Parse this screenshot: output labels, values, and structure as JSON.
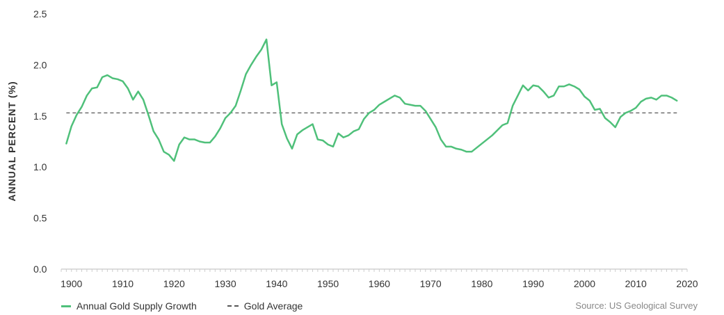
{
  "chart_data": {
    "type": "line",
    "ylabel": "ANNUAL PERCENT (%)",
    "xlabel": "",
    "ylim": [
      0,
      2.5
    ],
    "xlim": [
      1898,
      2020
    ],
    "yticks": [
      "0.0",
      "0.5",
      "1.0",
      "1.5",
      "2.0",
      "2.5"
    ],
    "xticks": [
      "1900",
      "1910",
      "1920",
      "1930",
      "1940",
      "1950",
      "1960",
      "1970",
      "1980",
      "1990",
      "2000",
      "2010",
      "2020"
    ],
    "grid": false,
    "legend_position": "bottom-left",
    "series": [
      {
        "name": "Annual Gold Supply Growth",
        "color": "#4fc07a",
        "style": "solid",
        "x": [
          1899,
          1900,
          1901,
          1902,
          1903,
          1904,
          1905,
          1906,
          1907,
          1908,
          1909,
          1910,
          1911,
          1912,
          1913,
          1914,
          1915,
          1916,
          1917,
          1918,
          1919,
          1920,
          1921,
          1922,
          1923,
          1924,
          1925,
          1926,
          1927,
          1928,
          1929,
          1930,
          1931,
          1932,
          1933,
          1934,
          1935,
          1936,
          1937,
          1938,
          1939,
          1940,
          1941,
          1942,
          1943,
          1944,
          1945,
          1946,
          1947,
          1948,
          1949,
          1950,
          1951,
          1952,
          1953,
          1954,
          1955,
          1956,
          1957,
          1958,
          1959,
          1960,
          1961,
          1962,
          1963,
          1964,
          1965,
          1966,
          1967,
          1968,
          1969,
          1970,
          1971,
          1972,
          1973,
          1974,
          1975,
          1976,
          1977,
          1978,
          1979,
          1980,
          1981,
          1982,
          1983,
          1984,
          1985,
          1986,
          1987,
          1988,
          1989,
          1990,
          1991,
          1992,
          1993,
          1994,
          1995,
          1996,
          1997,
          1998,
          1999,
          2000,
          2001,
          2002,
          2003,
          2004,
          2005,
          2006,
          2007,
          2008,
          2009,
          2010,
          2011,
          2012,
          2013,
          2014,
          2015,
          2016,
          2017,
          2018
        ],
        "y": [
          1.23,
          1.4,
          1.51,
          1.59,
          1.7,
          1.77,
          1.78,
          1.88,
          1.9,
          1.87,
          1.86,
          1.84,
          1.77,
          1.66,
          1.74,
          1.66,
          1.51,
          1.35,
          1.27,
          1.15,
          1.12,
          1.06,
          1.22,
          1.29,
          1.27,
          1.27,
          1.25,
          1.24,
          1.24,
          1.3,
          1.38,
          1.48,
          1.53,
          1.6,
          1.75,
          1.91,
          2.0,
          2.08,
          2.15,
          2.25,
          1.8,
          1.83,
          1.42,
          1.28,
          1.18,
          1.32,
          1.36,
          1.39,
          1.42,
          1.27,
          1.26,
          1.22,
          1.2,
          1.33,
          1.29,
          1.31,
          1.35,
          1.37,
          1.47,
          1.53,
          1.56,
          1.61,
          1.64,
          1.67,
          1.7,
          1.68,
          1.62,
          1.61,
          1.6,
          1.6,
          1.55,
          1.47,
          1.39,
          1.27,
          1.2,
          1.2,
          1.18,
          1.17,
          1.15,
          1.15,
          1.19,
          1.23,
          1.27,
          1.31,
          1.36,
          1.41,
          1.43,
          1.6,
          1.7,
          1.8,
          1.75,
          1.8,
          1.79,
          1.74,
          1.68,
          1.7,
          1.79,
          1.79,
          1.81,
          1.79,
          1.76,
          1.69,
          1.65,
          1.56,
          1.57,
          1.48,
          1.44,
          1.39,
          1.49,
          1.53,
          1.55,
          1.58,
          1.64,
          1.67,
          1.68,
          1.66,
          1.7,
          1.7,
          1.68,
          1.65
        ]
      },
      {
        "name": "Gold Average",
        "color": "#555555",
        "style": "dashed",
        "value": 1.53
      }
    ]
  },
  "legend": {
    "items": [
      {
        "label": "Annual Gold Supply Growth"
      },
      {
        "label": "Gold Average"
      }
    ]
  },
  "source": "Source: US Geological Survey"
}
